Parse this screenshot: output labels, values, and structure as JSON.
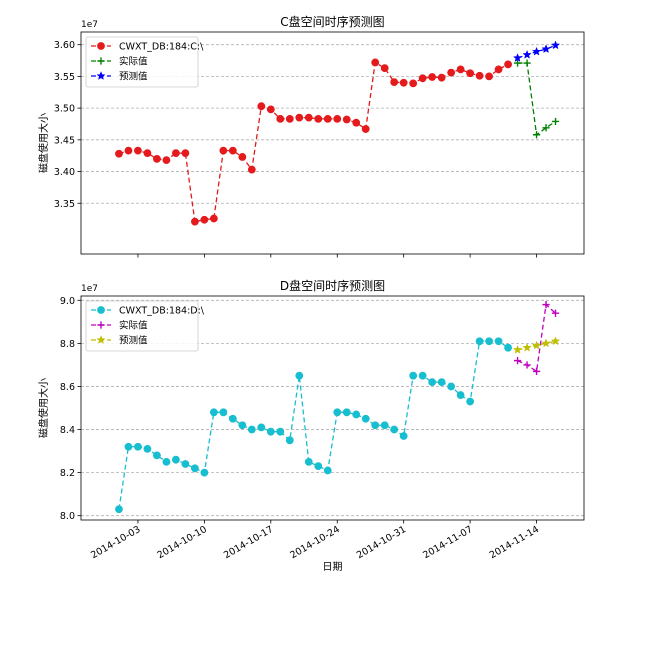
{
  "chart_data": [
    {
      "type": "line",
      "title": "C盘空间时序预测图",
      "ylabel": "磁盘使用大小",
      "xlabel": "",
      "offset_label": "1e7",
      "y_scale": 10000000,
      "ylim": [
        3.27,
        3.62
      ],
      "yticks": [
        3.35,
        3.4,
        3.45,
        3.5,
        3.55,
        3.6
      ],
      "ytick_labels": [
        "3.35",
        "3.40",
        "3.45",
        "3.50",
        "3.55",
        "3.60"
      ],
      "grid": "horizontal-dashed",
      "legend_position": "top-left",
      "series": [
        {
          "name": "CWXT_DB:184:C:\\",
          "color": "#e41a1c",
          "marker": "circle",
          "x": [
            "2014-10-01",
            "2014-10-02",
            "2014-10-03",
            "2014-10-04",
            "2014-10-05",
            "2014-10-06",
            "2014-10-07",
            "2014-10-08",
            "2014-10-09",
            "2014-10-10",
            "2014-10-11",
            "2014-10-12",
            "2014-10-13",
            "2014-10-14",
            "2014-10-15",
            "2014-10-16",
            "2014-10-17",
            "2014-10-18",
            "2014-10-19",
            "2014-10-20",
            "2014-10-21",
            "2014-10-22",
            "2014-10-23",
            "2014-10-24",
            "2014-10-25",
            "2014-10-26",
            "2014-10-27",
            "2014-10-28",
            "2014-10-29",
            "2014-10-30",
            "2014-10-31",
            "2014-11-01",
            "2014-11-02",
            "2014-11-03",
            "2014-11-04",
            "2014-11-05",
            "2014-11-06",
            "2014-11-07",
            "2014-11-08",
            "2014-11-09",
            "2014-11-10",
            "2014-11-11"
          ],
          "y": [
            3.428,
            3.433,
            3.433,
            3.429,
            3.42,
            3.418,
            3.429,
            3.429,
            3.321,
            3.324,
            3.326,
            3.433,
            3.433,
            3.423,
            3.403,
            3.503,
            3.498,
            3.483,
            3.483,
            3.485,
            3.485,
            3.483,
            3.483,
            3.483,
            3.482,
            3.477,
            3.467,
            3.572,
            3.563,
            3.541,
            3.54,
            3.539,
            3.547,
            3.549,
            3.548,
            3.556,
            3.561,
            3.555,
            3.551,
            3.55,
            3.561,
            3.569
          ]
        },
        {
          "name": "实际值",
          "color": "#008000",
          "marker": "plus",
          "x": [
            "2014-11-12",
            "2014-11-13",
            "2014-11-14",
            "2014-11-15",
            "2014-11-16"
          ],
          "y": [
            3.571,
            3.571,
            3.458,
            3.469,
            3.479
          ]
        },
        {
          "name": "预测值",
          "color": "#0000ff",
          "marker": "star",
          "x": [
            "2014-11-12",
            "2014-11-13",
            "2014-11-14",
            "2014-11-15",
            "2014-11-16"
          ],
          "y": [
            3.579,
            3.584,
            3.589,
            3.593,
            3.599
          ]
        }
      ]
    },
    {
      "type": "line",
      "title": "D盘空间时序预测图",
      "ylabel": "磁盘使用大小",
      "xlabel": "日期",
      "offset_label": "1e7",
      "y_scale": 10000000,
      "ylim": [
        7.98,
        9.02
      ],
      "yticks": [
        8.0,
        8.2,
        8.4,
        8.6,
        8.8,
        9.0
      ],
      "ytick_labels": [
        "8.0",
        "8.2",
        "8.4",
        "8.6",
        "8.8",
        "9.0"
      ],
      "grid": "horizontal-dashed",
      "legend_position": "top-left",
      "xlim": [
        "2014-09-27",
        "2014-11-19"
      ],
      "xticks": [
        "2014-10-03",
        "2014-10-10",
        "2014-10-17",
        "2014-10-24",
        "2014-10-31",
        "2014-11-07",
        "2014-11-14"
      ],
      "xtick_labels": [
        "2014-10-03",
        "2014-10-10",
        "2014-10-17",
        "2014-10-24",
        "2014-10-31",
        "2014-11-07",
        "2014-11-14"
      ],
      "series": [
        {
          "name": "CWXT_DB:184:D:\\",
          "color": "#17becf",
          "marker": "circle",
          "x": [
            "2014-10-01",
            "2014-10-02",
            "2014-10-03",
            "2014-10-04",
            "2014-10-05",
            "2014-10-06",
            "2014-10-07",
            "2014-10-08",
            "2014-10-09",
            "2014-10-10",
            "2014-10-11",
            "2014-10-12",
            "2014-10-13",
            "2014-10-14",
            "2014-10-15",
            "2014-10-16",
            "2014-10-17",
            "2014-10-18",
            "2014-10-19",
            "2014-10-20",
            "2014-10-21",
            "2014-10-22",
            "2014-10-23",
            "2014-10-24",
            "2014-10-25",
            "2014-10-26",
            "2014-10-27",
            "2014-10-28",
            "2014-10-29",
            "2014-10-30",
            "2014-10-31",
            "2014-11-01",
            "2014-11-02",
            "2014-11-03",
            "2014-11-04",
            "2014-11-05",
            "2014-11-06",
            "2014-11-07",
            "2014-11-08",
            "2014-11-09",
            "2014-11-10",
            "2014-11-11"
          ],
          "y": [
            8.03,
            8.32,
            8.32,
            8.31,
            8.28,
            8.25,
            8.26,
            8.24,
            8.22,
            8.2,
            8.48,
            8.48,
            8.45,
            8.42,
            8.4,
            8.41,
            8.39,
            8.39,
            8.35,
            8.65,
            8.25,
            8.23,
            8.21,
            8.48,
            8.48,
            8.47,
            8.45,
            8.42,
            8.42,
            8.4,
            8.37,
            8.65,
            8.65,
            8.62,
            8.62,
            8.6,
            8.56,
            8.53,
            8.81,
            8.81,
            8.81,
            8.78
          ]
        },
        {
          "name": "实际值",
          "color": "#bf00bf",
          "marker": "plus",
          "x": [
            "2014-11-12",
            "2014-11-13",
            "2014-11-14",
            "2014-11-15",
            "2014-11-16"
          ],
          "y": [
            8.72,
            8.7,
            8.67,
            8.98,
            8.94
          ]
        },
        {
          "name": "预测值",
          "color": "#bfbf00",
          "marker": "star",
          "x": [
            "2014-11-12",
            "2014-11-13",
            "2014-11-14",
            "2014-11-15",
            "2014-11-16"
          ],
          "y": [
            8.77,
            8.78,
            8.79,
            8.8,
            8.81
          ]
        }
      ]
    }
  ]
}
